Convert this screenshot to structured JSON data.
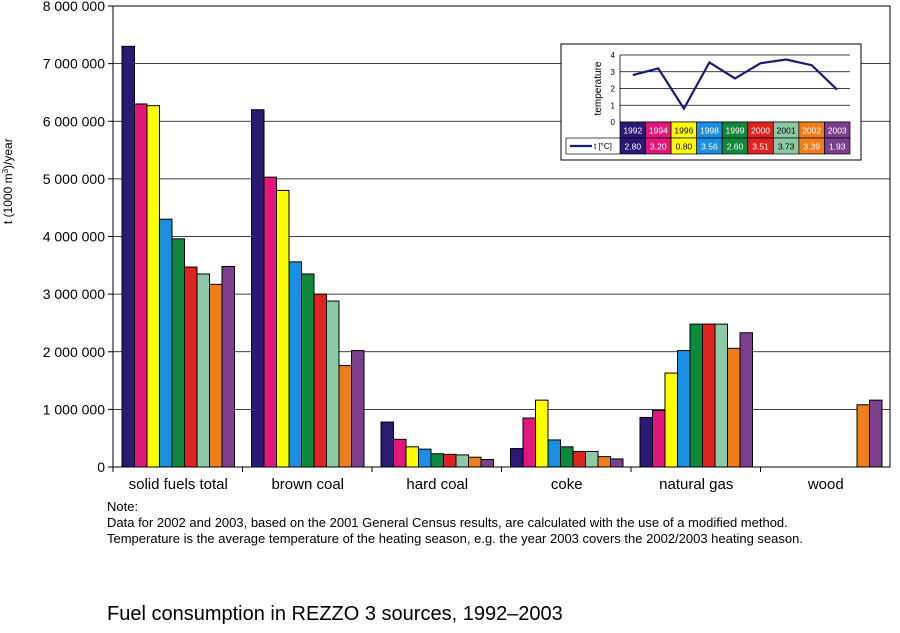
{
  "chart_data": {
    "type": "bar",
    "title": "Fuel consumption in REZZO 3 sources, 1992–2003",
    "ylabel_main": "t (1000 m",
    "ylabel_sup": "3",
    "ylabel_tail": ")/year",
    "ylim": [
      0,
      8000000
    ],
    "yticks": [
      0,
      1000000,
      2000000,
      3000000,
      4000000,
      5000000,
      6000000,
      7000000,
      8000000
    ],
    "ytick_labels": [
      "0",
      "1 000 000",
      "2 000 000",
      "3 000 000",
      "4 000 000",
      "5 000 000",
      "6 000 000",
      "7 000 000",
      "8 000 000"
    ],
    "grid": true,
    "categories": [
      "solid fuels total",
      "brown coal",
      "hard coal",
      "coke",
      "natural gas",
      "wood"
    ],
    "series": [
      {
        "name": "1992",
        "color": "#2b1a73",
        "values": [
          7300000,
          6200000,
          780000,
          320000,
          860000,
          null
        ]
      },
      {
        "name": "1994",
        "color": "#e0187e",
        "values": [
          6300000,
          5030000,
          480000,
          850000,
          980000,
          null
        ]
      },
      {
        "name": "1996",
        "color": "#ffff00",
        "values": [
          6270000,
          4800000,
          350000,
          1160000,
          1630000,
          null
        ]
      },
      {
        "name": "1998",
        "color": "#1a8ee0",
        "values": [
          4300000,
          3560000,
          310000,
          470000,
          2020000,
          null
        ]
      },
      {
        "name": "1999",
        "color": "#0f8a3c",
        "values": [
          3960000,
          3350000,
          230000,
          350000,
          2480000,
          null
        ]
      },
      {
        "name": "2000",
        "color": "#e02222",
        "values": [
          3470000,
          3000000,
          220000,
          270000,
          2480000,
          null
        ]
      },
      {
        "name": "2001",
        "color": "#8ccaa6",
        "values": [
          3350000,
          2880000,
          210000,
          270000,
          2480000,
          null
        ]
      },
      {
        "name": "2002",
        "color": "#ee7d1a",
        "values": [
          3170000,
          1760000,
          170000,
          180000,
          2060000,
          1080000
        ]
      },
      {
        "name": "2003",
        "color": "#7b3f8e",
        "values": [
          3480000,
          2020000,
          130000,
          140000,
          2330000,
          1160000
        ]
      }
    ],
    "inset": {
      "type": "line",
      "ylabel": "temperature",
      "ylim": [
        0,
        4
      ],
      "yticks": [
        "0",
        "1",
        "2",
        "3",
        "4"
      ],
      "series_label": "t [°C]",
      "line_color": "#1a1a7a",
      "years": [
        "1992",
        "1994",
        "1996",
        "1998",
        "1999",
        "2000",
        "2001",
        "2002",
        "2003"
      ],
      "values": [
        2.8,
        3.2,
        0.8,
        3.56,
        2.6,
        3.51,
        3.73,
        3.39,
        1.93
      ],
      "value_labels": [
        "2.80",
        "3.20",
        "0.80",
        "3.56",
        "2.60",
        "3.51",
        "3.73",
        "3.39",
        "1.93"
      ]
    }
  },
  "notes": {
    "heading": "Note:",
    "line1": "Data for 2002 and 2003, based on the 2001 General Census results, are calculated with the use of a modified method.",
    "line2": "Temperature is the average temperature of the heating season, e.g. the year 2003 covers the 2002/2003 heating season."
  }
}
